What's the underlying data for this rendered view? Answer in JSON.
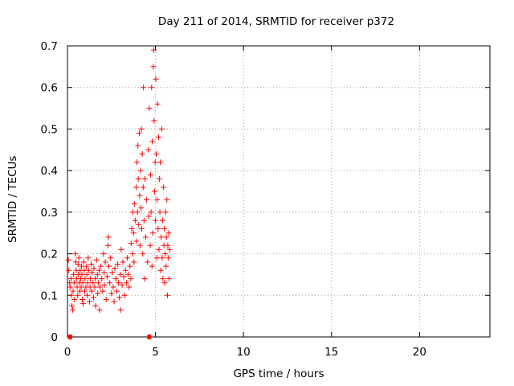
{
  "chart_data": {
    "type": "scatter",
    "title": "Day 211 of 2014, SRMTID for receiver p372",
    "xlabel": "GPS time / hours",
    "ylabel": "SRMTID / TECUs",
    "xlim": [
      0,
      24
    ],
    "ylim": [
      0,
      0.7
    ],
    "xticks": [
      0,
      5,
      10,
      15,
      20
    ],
    "yticks": [
      0,
      0.1,
      0.2,
      0.3,
      0.4,
      0.5,
      0.6,
      0.7
    ],
    "xtick_labels": [
      "0",
      "5",
      "10",
      "15",
      "20"
    ],
    "ytick_labels": [
      "0",
      "0.1",
      "0.2",
      "0.3",
      "0.4",
      "0.5",
      "0.6",
      "0.7"
    ],
    "grid": true,
    "marker": "+",
    "color": "#ff0000",
    "series": [
      {
        "name": "SRMTID",
        "points": [
          [
            0.05,
            0.185
          ],
          [
            0.08,
            0.16
          ],
          [
            0.12,
            0.13
          ],
          [
            0.15,
            0.12
          ],
          [
            0.2,
            0.14
          ],
          [
            0.22,
            0.1
          ],
          [
            0.25,
            0.075
          ],
          [
            0.3,
            0.065
          ],
          [
            0.32,
            0.11
          ],
          [
            0.35,
            0.15
          ],
          [
            0.38,
            0.13
          ],
          [
            0.4,
            0.09
          ],
          [
            0.45,
            0.2
          ],
          [
            0.48,
            0.18
          ],
          [
            0.5,
            0.16
          ],
          [
            0.52,
            0.14
          ],
          [
            0.55,
            0.12
          ],
          [
            0.58,
            0.1
          ],
          [
            0.6,
            0.175
          ],
          [
            0.62,
            0.15
          ],
          [
            0.65,
            0.19
          ],
          [
            0.68,
            0.13
          ],
          [
            0.7,
            0.11
          ],
          [
            0.72,
            0.16
          ],
          [
            0.75,
            0.14
          ],
          [
            0.78,
            0.12
          ],
          [
            0.8,
            0.17
          ],
          [
            0.82,
            0.15
          ],
          [
            0.85,
            0.09
          ],
          [
            0.88,
            0.13
          ],
          [
            0.9,
            0.08
          ],
          [
            0.92,
            0.18
          ],
          [
            0.95,
            0.16
          ],
          [
            0.98,
            0.11
          ],
          [
            1.0,
            0.14
          ],
          [
            1.05,
            0.12
          ],
          [
            1.08,
            0.17
          ],
          [
            1.1,
            0.15
          ],
          [
            1.12,
            0.1
          ],
          [
            1.15,
            0.13
          ],
          [
            1.18,
            0.19
          ],
          [
            1.2,
            0.16
          ],
          [
            1.25,
            0.085
          ],
          [
            1.28,
            0.12
          ],
          [
            1.3,
            0.14
          ],
          [
            1.35,
            0.175
          ],
          [
            1.38,
            0.11
          ],
          [
            1.4,
            0.155
          ],
          [
            1.45,
            0.13
          ],
          [
            1.48,
            0.095
          ],
          [
            1.5,
            0.165
          ],
          [
            1.55,
            0.12
          ],
          [
            1.58,
            0.14
          ],
          [
            1.6,
            0.075
          ],
          [
            1.65,
            0.185
          ],
          [
            1.7,
            0.15
          ],
          [
            1.72,
            0.105
          ],
          [
            1.75,
            0.13
          ],
          [
            1.8,
            0.16
          ],
          [
            1.82,
            0.065
          ],
          [
            1.85,
            0.12
          ],
          [
            1.9,
            0.17
          ],
          [
            1.95,
            0.14
          ],
          [
            2.0,
            0.11
          ],
          [
            2.05,
            0.2
          ],
          [
            2.08,
            0.155
          ],
          [
            2.1,
            0.125
          ],
          [
            2.15,
            0.18
          ],
          [
            2.2,
            0.09
          ],
          [
            2.25,
            0.145
          ],
          [
            2.3,
            0.22
          ],
          [
            2.32,
            0.24
          ],
          [
            2.35,
            0.17
          ],
          [
            2.4,
            0.13
          ],
          [
            2.45,
            0.19
          ],
          [
            2.5,
            0.105
          ],
          [
            2.55,
            0.155
          ],
          [
            2.6,
            0.12
          ],
          [
            2.65,
            0.085
          ],
          [
            2.7,
            0.165
          ],
          [
            2.75,
            0.14
          ],
          [
            2.8,
            0.11
          ],
          [
            2.85,
            0.175
          ],
          [
            2.9,
            0.13
          ],
          [
            2.95,
            0.095
          ],
          [
            3.0,
            0.15
          ],
          [
            3.02,
            0.065
          ],
          [
            3.05,
            0.21
          ],
          [
            3.1,
            0.125
          ],
          [
            3.15,
            0.18
          ],
          [
            3.2,
            0.145
          ],
          [
            3.25,
            0.1
          ],
          [
            3.3,
            0.16
          ],
          [
            3.35,
            0.13
          ],
          [
            3.4,
            0.19
          ],
          [
            3.45,
            0.15
          ],
          [
            3.5,
            0.12
          ],
          [
            3.55,
            0.17
          ],
          [
            3.6,
            0.14
          ],
          [
            3.62,
            0.225
          ],
          [
            3.65,
            0.26
          ],
          [
            3.7,
            0.2
          ],
          [
            3.72,
            0.3
          ],
          [
            3.75,
            0.25
          ],
          [
            3.78,
            0.18
          ],
          [
            3.8,
            0.32
          ],
          [
            3.85,
            0.28
          ],
          [
            3.9,
            0.36
          ],
          [
            3.92,
            0.23
          ],
          [
            3.95,
            0.42
          ],
          [
            3.98,
            0.3
          ],
          [
            4.0,
            0.46
          ],
          [
            4.02,
            0.38
          ],
          [
            4.05,
            0.27
          ],
          [
            4.08,
            0.49
          ],
          [
            4.1,
            0.34
          ],
          [
            4.12,
            0.22
          ],
          [
            4.15,
            0.4
          ],
          [
            4.18,
            0.31
          ],
          [
            4.2,
            0.5
          ],
          [
            4.22,
            0.26
          ],
          [
            4.25,
            0.44
          ],
          [
            4.28,
            0.2
          ],
          [
            4.3,
            0.36
          ],
          [
            4.32,
            0.6
          ],
          [
            4.35,
            0.28
          ],
          [
            4.38,
            0.14
          ],
          [
            4.4,
            0.38
          ],
          [
            4.45,
            0.24
          ],
          [
            4.5,
            0.33
          ],
          [
            4.55,
            0.18
          ],
          [
            4.6,
            0.45
          ],
          [
            4.62,
            0.29
          ],
          [
            4.65,
            0.55
          ],
          [
            4.7,
            0.22
          ],
          [
            4.72,
            0.39
          ],
          [
            4.75,
            0.3
          ],
          [
            4.78,
            0.6
          ],
          [
            4.8,
            0.17
          ],
          [
            4.82,
            0.47
          ],
          [
            4.85,
            0.25
          ],
          [
            4.88,
            0.65
          ],
          [
            4.9,
            0.69
          ],
          [
            4.92,
            0.52
          ],
          [
            4.95,
            0.35
          ],
          [
            4.98,
            0.42
          ],
          [
            5.0,
            0.28
          ],
          [
            5.02,
            0.62
          ],
          [
            5.05,
            0.44
          ],
          [
            5.08,
            0.19
          ],
          [
            5.1,
            0.33
          ],
          [
            5.12,
            0.56
          ],
          [
            5.15,
            0.26
          ],
          [
            5.18,
            0.48
          ],
          [
            5.2,
            0.21
          ],
          [
            5.22,
            0.38
          ],
          [
            5.25,
            0.3
          ],
          [
            5.28,
            0.42
          ],
          [
            5.3,
            0.16
          ],
          [
            5.32,
            0.24
          ],
          [
            5.35,
            0.5
          ],
          [
            5.38,
            0.19
          ],
          [
            5.4,
            0.28
          ],
          [
            5.42,
            0.14
          ],
          [
            5.45,
            0.36
          ],
          [
            5.48,
            0.22
          ],
          [
            5.5,
            0.26
          ],
          [
            5.52,
            0.13
          ],
          [
            5.55,
            0.2
          ],
          [
            5.58,
            0.3
          ],
          [
            5.6,
            0.17
          ],
          [
            5.62,
            0.24
          ],
          [
            5.65,
            0.33
          ],
          [
            5.68,
            0.1
          ],
          [
            5.7,
            0.22
          ],
          [
            5.72,
            0.19
          ],
          [
            5.75,
            0.25
          ],
          [
            5.78,
            0.14
          ],
          [
            5.8,
            0.21
          ]
        ]
      }
    ],
    "bottom_markers_x": [
      0.15,
      4.65
    ]
  }
}
